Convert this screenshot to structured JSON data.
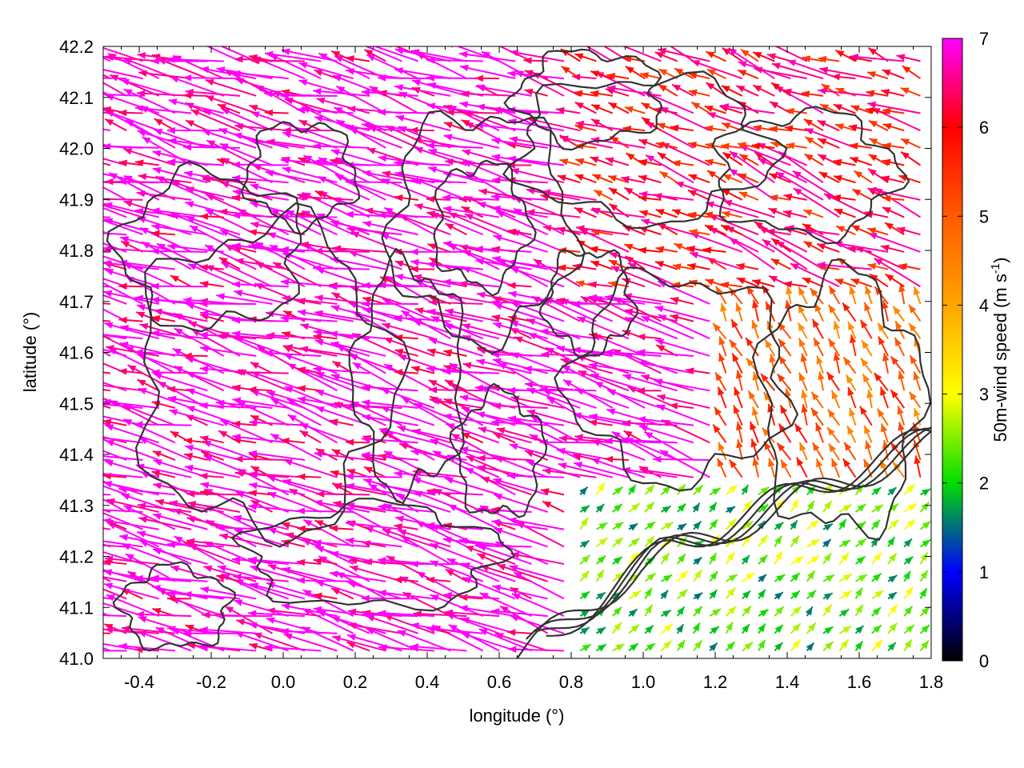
{
  "chart_data": {
    "type": "vector-field",
    "xlabel": "longitude (°)",
    "ylabel": "latitude (°)",
    "xlim": [
      -0.5,
      1.8
    ],
    "ylim": [
      41.0,
      42.2
    ],
    "xticks": [
      -0.4,
      -0.2,
      0.0,
      0.2,
      0.4,
      0.6,
      0.8,
      1.0,
      1.2,
      1.4,
      1.6,
      1.8
    ],
    "xtick_labels": [
      "-0.4",
      "-0.2",
      "0.0",
      "0.2",
      "0.4",
      "0.6",
      "0.8",
      "1.0",
      "1.2",
      "1.4",
      "1.6",
      "1.8"
    ],
    "yticks": [
      41.0,
      41.1,
      41.2,
      41.3,
      41.4,
      41.5,
      41.6,
      41.7,
      41.8,
      41.9,
      42.0,
      42.1,
      42.2
    ],
    "ytick_labels": [
      "41.0",
      "41.1",
      "41.2",
      "41.3",
      "41.4",
      "41.5",
      "41.6",
      "41.7",
      "41.8",
      "41.9",
      "42.0",
      "42.1",
      "42.2"
    ],
    "grid": false,
    "colorbar": {
      "label_main": "50m-wind speed (m s",
      "label_sup": "-1",
      "label_end": ")",
      "range": [
        0,
        7
      ],
      "ticks": [
        0,
        1,
        2,
        3,
        4,
        5,
        6,
        7
      ],
      "tick_labels": [
        "0",
        "1",
        "2",
        "3",
        "4",
        "5",
        "6",
        "7"
      ],
      "colormap": [
        {
          "v": 0,
          "color": "#000000"
        },
        {
          "v": 1,
          "color": "#0000ff"
        },
        {
          "v": 2,
          "color": "#00dd00"
        },
        {
          "v": 3,
          "color": "#ffff00"
        },
        {
          "v": 4,
          "color": "#ffa500"
        },
        {
          "v": 5,
          "color": "#ff5a00"
        },
        {
          "v": 6,
          "color": "#ff0000"
        },
        {
          "v": 7,
          "color": "#ff00ff"
        }
      ]
    },
    "contour_color": "#333333",
    "vector_field_regions": [
      {
        "region": "west and centre",
        "lon": [
          -0.5,
          0.8
        ],
        "lat": [
          41.0,
          42.2
        ],
        "speed": 7,
        "direction_deg": 165
      },
      {
        "region": "north-east",
        "lon": [
          0.8,
          1.8
        ],
        "lat": [
          41.7,
          42.2
        ],
        "speed": 6,
        "direction_deg": 160
      },
      {
        "region": "east-central",
        "lon": [
          1.2,
          1.8
        ],
        "lat": [
          41.35,
          41.7
        ],
        "speed": 5,
        "direction_deg": 115
      },
      {
        "region": "coastal south-east",
        "lon": [
          0.8,
          1.8
        ],
        "lat": [
          41.0,
          41.35
        ],
        "speed": 2.3,
        "direction_deg": 45
      }
    ]
  }
}
